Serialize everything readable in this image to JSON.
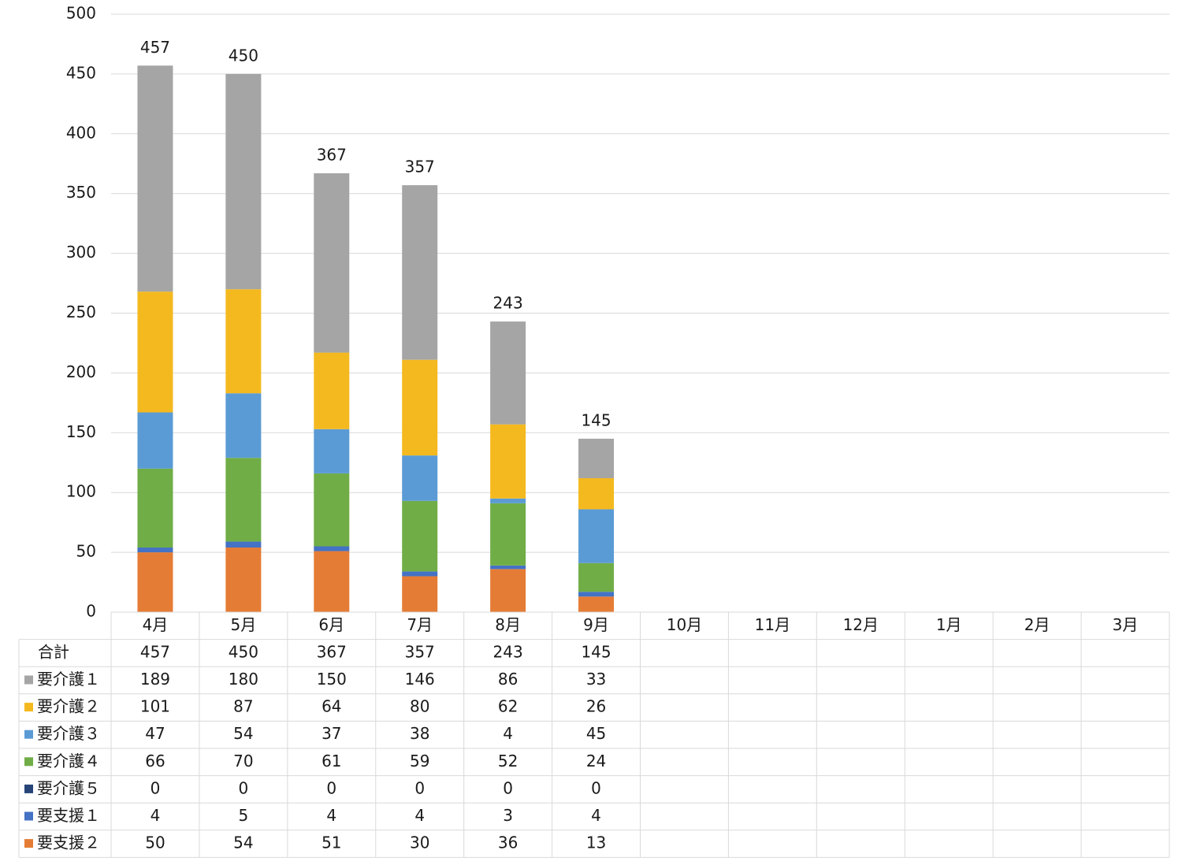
{
  "chart_data": {
    "type": "bar",
    "stacked": true,
    "categories": [
      "4月",
      "5月",
      "6月",
      "7月",
      "8月",
      "9月",
      "10月",
      "11月",
      "12月",
      "1月",
      "2月",
      "3月"
    ],
    "ylim": [
      0,
      500
    ],
    "yticks": [
      0,
      50,
      100,
      150,
      200,
      250,
      300,
      350,
      400,
      450,
      500
    ],
    "grid": true,
    "data_table": true,
    "totals": {
      "name": "合計",
      "values": [
        457,
        450,
        367,
        357,
        243,
        145,
        null,
        null,
        null,
        null,
        null,
        null
      ]
    },
    "series": [
      {
        "name": "要介護１",
        "color": "#a5a5a5",
        "values": [
          189,
          180,
          150,
          146,
          86,
          33,
          null,
          null,
          null,
          null,
          null,
          null
        ]
      },
      {
        "name": "要介護２",
        "color": "#f4b91f",
        "values": [
          101,
          87,
          64,
          80,
          62,
          26,
          null,
          null,
          null,
          null,
          null,
          null
        ]
      },
      {
        "name": "要介護３",
        "color": "#5b9bd5",
        "values": [
          47,
          54,
          37,
          38,
          4,
          45,
          null,
          null,
          null,
          null,
          null,
          null
        ]
      },
      {
        "name": "要介護４",
        "color": "#70ad47",
        "values": [
          66,
          70,
          61,
          59,
          52,
          24,
          null,
          null,
          null,
          null,
          null,
          null
        ]
      },
      {
        "name": "要介護５",
        "color": "#264478",
        "values": [
          0,
          0,
          0,
          0,
          0,
          0,
          null,
          null,
          null,
          null,
          null,
          null
        ]
      },
      {
        "name": "要支援１",
        "color": "#4472c4",
        "values": [
          4,
          5,
          4,
          4,
          3,
          4,
          null,
          null,
          null,
          null,
          null,
          null
        ]
      },
      {
        "name": "要支援２",
        "color": "#e57c35",
        "values": [
          50,
          54,
          51,
          30,
          36,
          13,
          null,
          null,
          null,
          null,
          null,
          null
        ]
      }
    ]
  }
}
